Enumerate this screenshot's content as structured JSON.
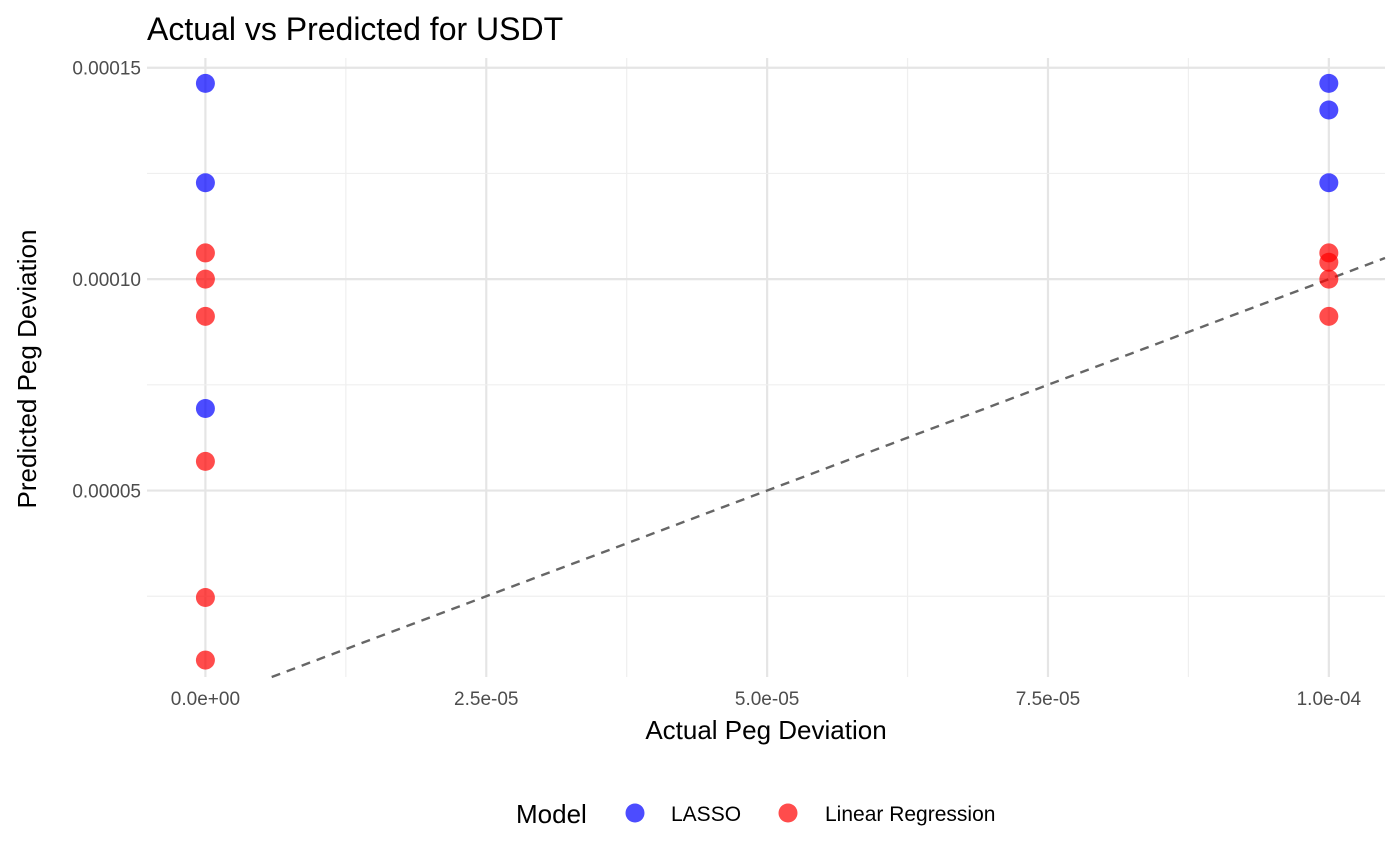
{
  "chart_data": {
    "type": "scatter",
    "title": "Actual vs Predicted for USDT",
    "xlabel": "Actual Peg Deviation",
    "ylabel": "Predicted Peg Deviation",
    "xlim": [
      -5.2e-06,
      0.000105
    ],
    "ylim": [
      5.9e-06,
      0.0001523
    ],
    "x_ticks": [
      {
        "value": 0,
        "label": "0.0e+00"
      },
      {
        "value": 2.5e-05,
        "label": "2.5e-05"
      },
      {
        "value": 5e-05,
        "label": "5.0e-05"
      },
      {
        "value": 7.5e-05,
        "label": "7.5e-05"
      },
      {
        "value": 0.0001,
        "label": "1.0e-04"
      }
    ],
    "y_ticks": [
      {
        "value": 5e-05,
        "label": "0.00005"
      },
      {
        "value": 0.0001,
        "label": "0.00010"
      },
      {
        "value": 0.00015,
        "label": "0.00015"
      }
    ],
    "grid": true,
    "reference_line": {
      "style": "dashed",
      "color": "#666666",
      "slope": 1,
      "intercept": 0
    },
    "legend": {
      "title": "Model",
      "placement": "bottom"
    },
    "series": [
      {
        "name": "LASSO",
        "color": "#0000ff",
        "points": [
          {
            "x": 0,
            "y": 0.0001463
          },
          {
            "x": 0,
            "y": 0.0001228
          },
          {
            "x": 0,
            "y": 6.94e-05
          },
          {
            "x": 0.0001,
            "y": 0.0001463
          },
          {
            "x": 0.0001,
            "y": 0.00014
          },
          {
            "x": 0.0001,
            "y": 0.0001228
          }
        ]
      },
      {
        "name": "Linear Regression",
        "color": "#ff0000",
        "points": [
          {
            "x": 0,
            "y": 0.0001062
          },
          {
            "x": 0,
            "y": 0.0001
          },
          {
            "x": 0,
            "y": 9.12e-05
          },
          {
            "x": 0,
            "y": 5.69e-05
          },
          {
            "x": 0,
            "y": 2.47e-05
          },
          {
            "x": 0,
            "y": 9.9e-06
          },
          {
            "x": 0.0001,
            "y": 0.0001062
          },
          {
            "x": 0.0001,
            "y": 0.000104
          },
          {
            "x": 0.0001,
            "y": 0.0001
          },
          {
            "x": 0.0001,
            "y": 9.12e-05
          }
        ]
      }
    ]
  }
}
